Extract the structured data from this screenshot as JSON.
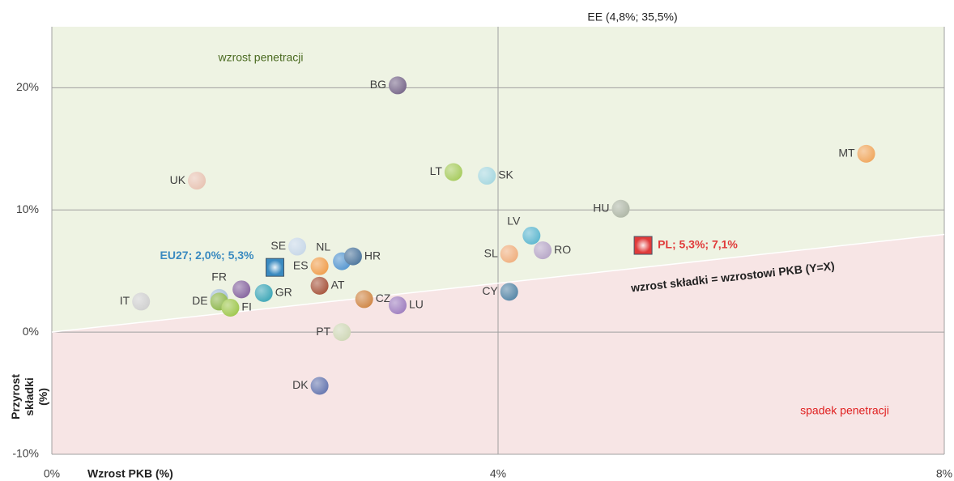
{
  "chart_data": {
    "type": "scatter",
    "xlabel": "Wzrost PKB (%)",
    "ylabel": "Przyrost składki (%)",
    "annotations": {
      "top": "EE (4,8%; 35,5%)",
      "above": "wzrost penetracji",
      "below": "spadek penetracji",
      "line": "wzrost składki = wzrostowi PKB (Y=X)"
    },
    "xlim": [
      0,
      8
    ],
    "ylim": [
      -10,
      25
    ],
    "xticks": [
      {
        "value": 0,
        "label": "0%"
      },
      {
        "value": 4,
        "label": "4%"
      },
      {
        "value": 8,
        "label": "8%"
      }
    ],
    "yticks": [
      {
        "value": -10,
        "label": "-10%"
      },
      {
        "value": 0,
        "label": "0%"
      },
      {
        "value": 10,
        "label": "10%"
      },
      {
        "value": 20,
        "label": "20%"
      }
    ],
    "grid": true,
    "labels": [
      "BG",
      "MT",
      "UK",
      "LT",
      "SK",
      "HU",
      "LV",
      "RO",
      "SL",
      "CY",
      "SE",
      "NL",
      "HR",
      "ES",
      "AT",
      "CZ",
      "LU",
      "PT",
      "DK",
      "GR",
      "FR",
      null,
      "DE",
      "FI",
      "IT"
    ],
    "x": [
      3.1,
      7.3,
      1.3,
      3.6,
      3.9,
      5.1,
      4.3,
      4.4,
      4.1,
      4.1,
      2.2,
      2.6,
      2.7,
      2.4,
      2.4,
      2.8,
      3.1,
      2.6,
      2.4,
      1.9,
      1.5,
      1.7,
      1.5,
      1.6,
      0.8
    ],
    "y": [
      20.2,
      14.6,
      12.4,
      13.1,
      12.8,
      10.1,
      7.9,
      6.7,
      6.4,
      3.3,
      7.0,
      5.8,
      6.2,
      5.4,
      3.8,
      2.7,
      2.2,
      0,
      -4.4,
      3.2,
      2.8,
      3.5,
      2.5,
      2.0,
      2.5
    ],
    "colors": [
      "#7a6a8c",
      "#f0a860",
      "#e8c4b4",
      "#a8cc60",
      "#a8d8e0",
      "#b0b8a8",
      "#60b8d0",
      "#b8a8c8",
      "#f0b080",
      "#5888a8",
      "#c8d8e8",
      "#5898d0",
      "#50789e",
      "#f0a050",
      "#a85840",
      "#d08848",
      "#a080c0",
      "#d0d8b8",
      "#6878b0",
      "#40a8b8",
      "#a8c0d8",
      "#8868a0",
      "#90b850",
      "#a0c850",
      "#d0d0d0"
    ],
    "highlights": [
      {
        "label": "EU27; 2,0%; 5,3%",
        "x": 2.0,
        "y": 5.3,
        "color": "#3a8ac0"
      },
      {
        "label": "PL; 5,3%; 7,1%",
        "x": 5.3,
        "y": 7.1,
        "color": "#e03a3a"
      }
    ]
  }
}
